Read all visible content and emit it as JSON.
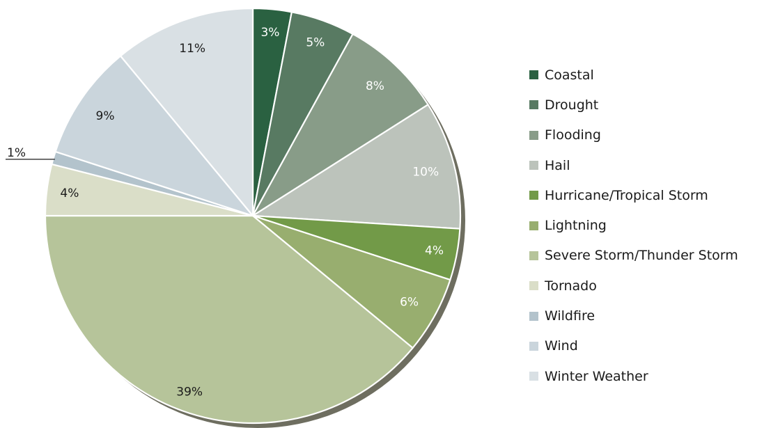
{
  "chart_data": {
    "type": "pie",
    "title": "",
    "unit": "%",
    "legend_position": "right",
    "start_angle_deg": 0,
    "direction": "clockwise",
    "slices": [
      {
        "name": "Coastal",
        "value": 3,
        "label": "3%",
        "color": "#2a6141",
        "label_color": "#ffffff"
      },
      {
        "name": "Drought",
        "value": 5,
        "label": "5%",
        "color": "#587a62",
        "label_color": "#ffffff"
      },
      {
        "name": "Flooding",
        "value": 8,
        "label": "8%",
        "color": "#889c88",
        "label_color": "#ffffff"
      },
      {
        "name": "Hail",
        "value": 10,
        "label": "10%",
        "color": "#bcc3bb",
        "label_color": "#ffffff"
      },
      {
        "name": "Hurricane/Tropical Storm",
        "value": 4,
        "label": "4%",
        "color": "#729a48",
        "label_color": "#ffffff"
      },
      {
        "name": "Lightning",
        "value": 6,
        "label": "6%",
        "color": "#98ae6f",
        "label_color": "#ffffff"
      },
      {
        "name": "Severe Storm/Thunder Storm",
        "value": 39,
        "label": "39%",
        "color": "#b6c49a",
        "label_color": "#1a1a1a"
      },
      {
        "name": "Tornado",
        "value": 4,
        "label": "4%",
        "color": "#dadec8",
        "label_color": "#1a1a1a"
      },
      {
        "name": "Wildfire",
        "value": 1,
        "label": "1%",
        "color": "#b3c3cc",
        "label_color": "#1a1a1a",
        "label_outside": true
      },
      {
        "name": "Wind",
        "value": 9,
        "label": "9%",
        "color": "#cad5dc",
        "label_color": "#1a1a1a"
      },
      {
        "name": "Winter Weather",
        "value": 11,
        "label": "11%",
        "color": "#d9e0e4",
        "label_color": "#1a1a1a"
      }
    ],
    "shadow_color": "#6e6e60"
  }
}
